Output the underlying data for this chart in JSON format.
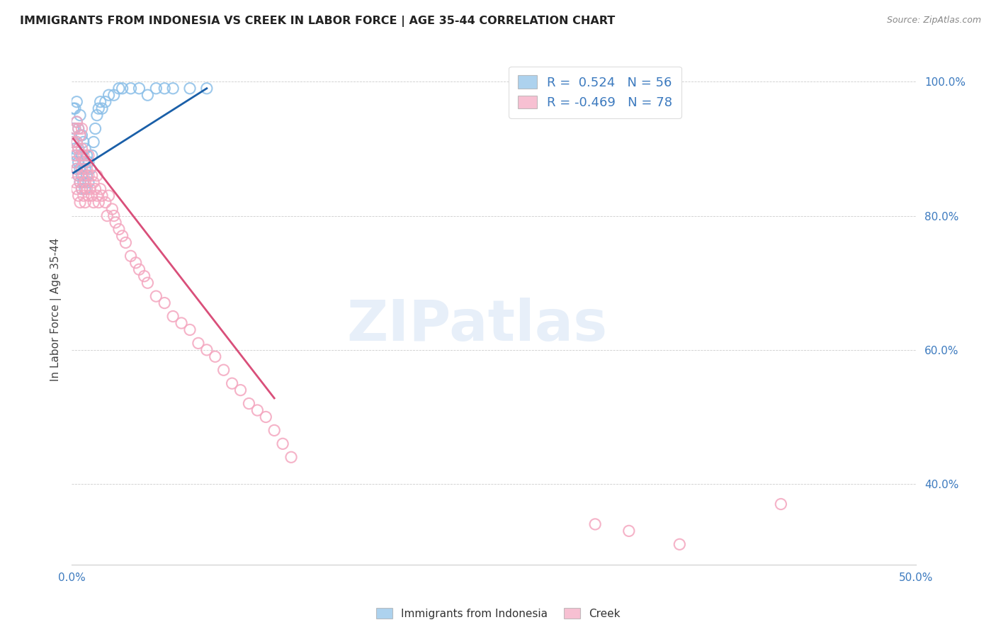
{
  "title": "IMMIGRANTS FROM INDONESIA VS CREEK IN LABOR FORCE | AGE 35-44 CORRELATION CHART",
  "source": "Source: ZipAtlas.com",
  "ylabel": "In Labor Force | Age 35-44",
  "xlim": [
    0.0,
    0.5
  ],
  "ylim": [
    0.28,
    1.04
  ],
  "xticks": [
    0.0,
    0.05,
    0.1,
    0.15,
    0.2,
    0.25,
    0.3,
    0.35,
    0.4,
    0.45,
    0.5
  ],
  "yticks": [
    0.4,
    0.6,
    0.8,
    1.0
  ],
  "ytick_labels": [
    "40.0%",
    "60.0%",
    "80.0%",
    "100.0%"
  ],
  "xtick_labels": [
    "0.0%",
    "",
    "",
    "",
    "",
    "",
    "",
    "",
    "",
    "",
    "50.0%"
  ],
  "blue_R": 0.524,
  "blue_N": 56,
  "pink_R": -0.469,
  "pink_N": 78,
  "blue_color": "#8bbfe8",
  "pink_color": "#f4a6bf",
  "blue_line_color": "#1a5fa8",
  "pink_line_color": "#d94f7a",
  "legend_label_blue": "Immigrants from Indonesia",
  "legend_label_pink": "Creek",
  "watermark": "ZIPatlas",
  "blue_scatter_x": [
    0.001,
    0.001,
    0.001,
    0.002,
    0.002,
    0.002,
    0.002,
    0.003,
    0.003,
    0.003,
    0.003,
    0.003,
    0.004,
    0.004,
    0.004,
    0.004,
    0.005,
    0.005,
    0.005,
    0.005,
    0.005,
    0.006,
    0.006,
    0.006,
    0.006,
    0.007,
    0.007,
    0.007,
    0.008,
    0.008,
    0.008,
    0.009,
    0.009,
    0.01,
    0.01,
    0.011,
    0.012,
    0.013,
    0.014,
    0.015,
    0.016,
    0.017,
    0.018,
    0.02,
    0.022,
    0.025,
    0.028,
    0.03,
    0.035,
    0.04,
    0.045,
    0.05,
    0.055,
    0.06,
    0.07,
    0.08
  ],
  "blue_scatter_y": [
    0.91,
    0.93,
    0.96,
    0.88,
    0.9,
    0.93,
    0.96,
    0.87,
    0.89,
    0.91,
    0.94,
    0.97,
    0.86,
    0.88,
    0.9,
    0.93,
    0.85,
    0.87,
    0.89,
    0.92,
    0.95,
    0.84,
    0.86,
    0.89,
    0.92,
    0.85,
    0.88,
    0.91,
    0.84,
    0.87,
    0.9,
    0.86,
    0.89,
    0.85,
    0.88,
    0.87,
    0.89,
    0.91,
    0.93,
    0.95,
    0.96,
    0.97,
    0.96,
    0.97,
    0.98,
    0.98,
    0.99,
    0.99,
    0.99,
    0.99,
    0.98,
    0.99,
    0.99,
    0.99,
    0.99,
    0.99
  ],
  "pink_scatter_x": [
    0.001,
    0.001,
    0.002,
    0.002,
    0.002,
    0.003,
    0.003,
    0.003,
    0.003,
    0.004,
    0.004,
    0.004,
    0.004,
    0.005,
    0.005,
    0.005,
    0.005,
    0.006,
    0.006,
    0.006,
    0.006,
    0.007,
    0.007,
    0.007,
    0.008,
    0.008,
    0.008,
    0.009,
    0.009,
    0.01,
    0.01,
    0.01,
    0.011,
    0.012,
    0.012,
    0.013,
    0.013,
    0.014,
    0.015,
    0.015,
    0.016,
    0.017,
    0.018,
    0.02,
    0.021,
    0.022,
    0.024,
    0.025,
    0.026,
    0.028,
    0.03,
    0.032,
    0.035,
    0.038,
    0.04,
    0.043,
    0.045,
    0.05,
    0.055,
    0.06,
    0.065,
    0.07,
    0.075,
    0.08,
    0.085,
    0.09,
    0.095,
    0.1,
    0.105,
    0.11,
    0.115,
    0.12,
    0.125,
    0.13,
    0.31,
    0.33,
    0.36,
    0.42
  ],
  "pink_scatter_y": [
    0.88,
    0.91,
    0.85,
    0.89,
    0.93,
    0.84,
    0.87,
    0.91,
    0.94,
    0.83,
    0.86,
    0.9,
    0.93,
    0.82,
    0.85,
    0.89,
    0.92,
    0.84,
    0.87,
    0.9,
    0.93,
    0.83,
    0.86,
    0.89,
    0.82,
    0.85,
    0.88,
    0.84,
    0.87,
    0.83,
    0.86,
    0.89,
    0.84,
    0.83,
    0.86,
    0.82,
    0.85,
    0.84,
    0.83,
    0.86,
    0.82,
    0.84,
    0.83,
    0.82,
    0.8,
    0.83,
    0.81,
    0.8,
    0.79,
    0.78,
    0.77,
    0.76,
    0.74,
    0.73,
    0.72,
    0.71,
    0.7,
    0.68,
    0.67,
    0.65,
    0.64,
    0.63,
    0.61,
    0.6,
    0.59,
    0.57,
    0.55,
    0.54,
    0.52,
    0.51,
    0.5,
    0.48,
    0.46,
    0.44,
    0.34,
    0.33,
    0.31,
    0.37
  ],
  "blue_trendline_x": [
    0.001,
    0.08
  ],
  "blue_trendline_y": [
    0.864,
    0.99
  ],
  "pink_trendline_x": [
    0.001,
    0.12
  ],
  "pink_trendline_y": [
    0.915,
    0.528
  ]
}
